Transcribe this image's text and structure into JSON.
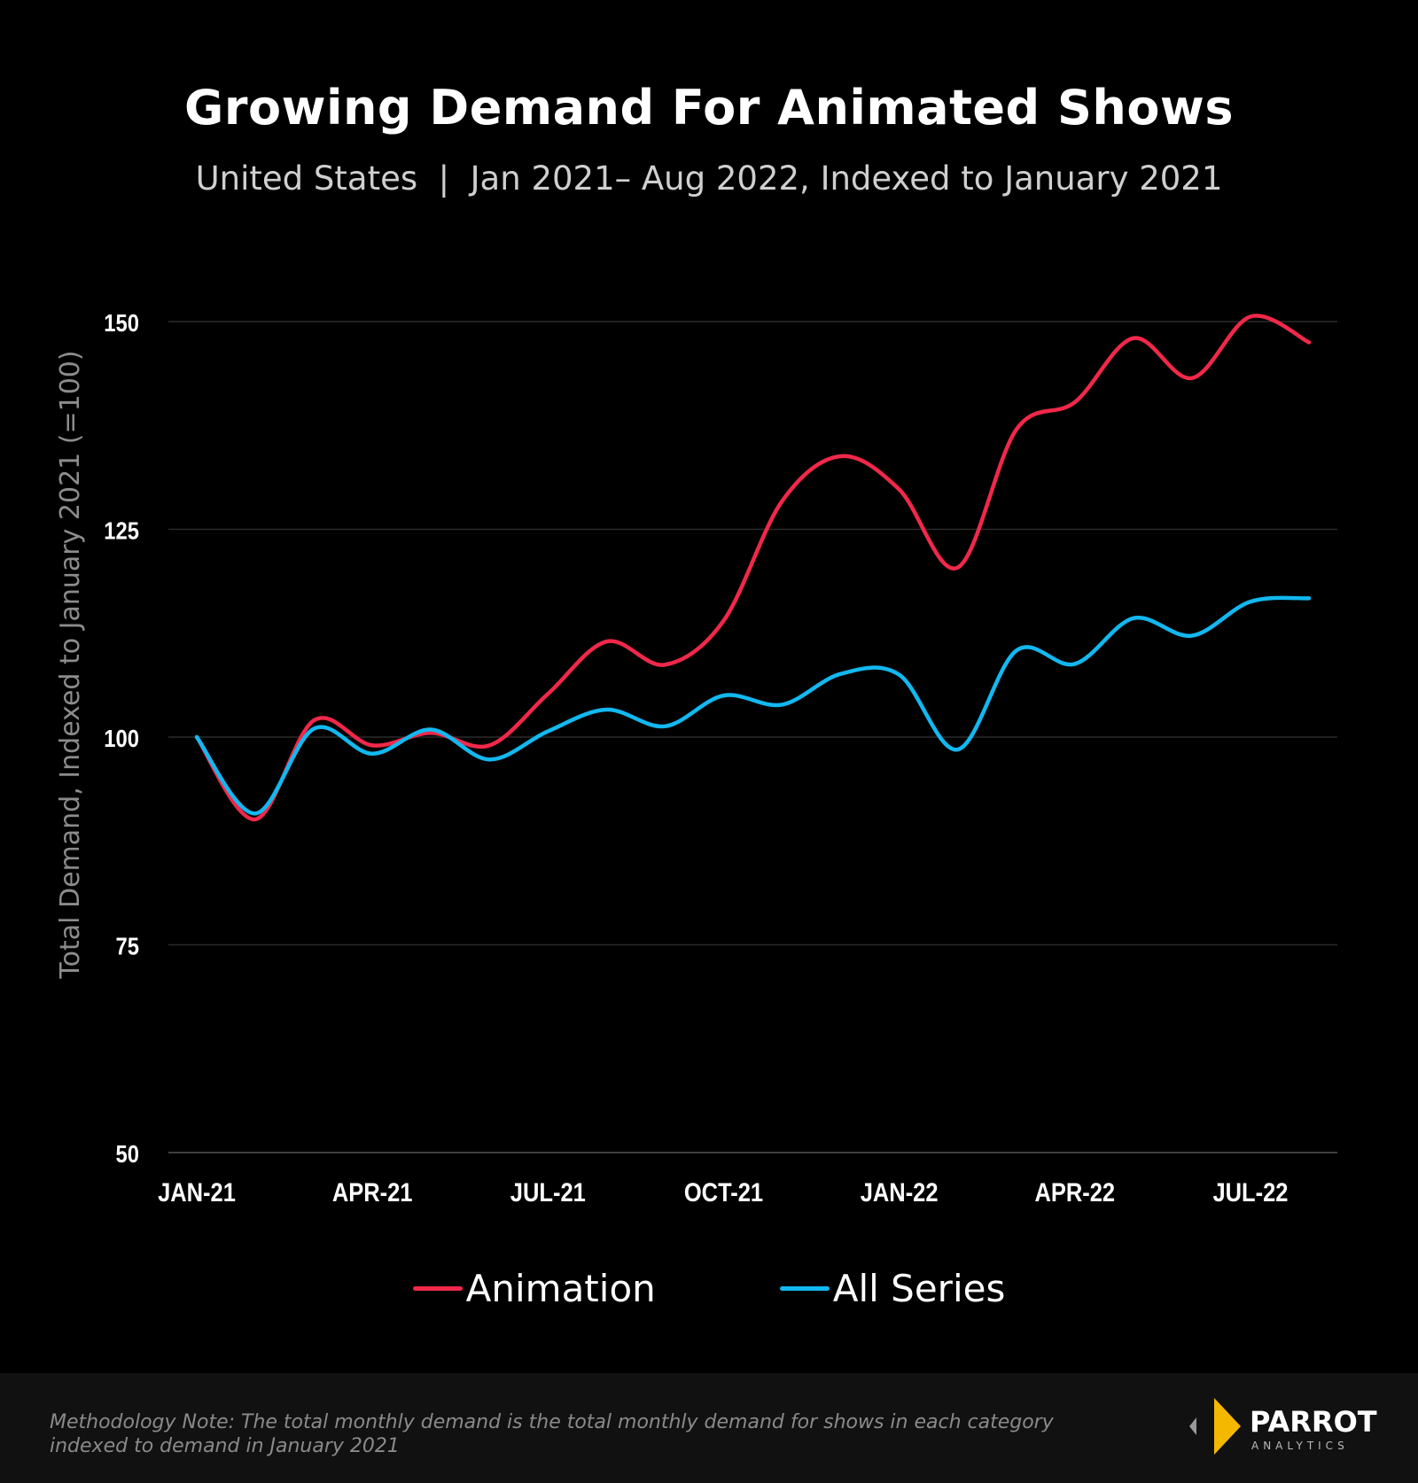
{
  "chart_data": {
    "type": "line",
    "title": "Growing Demand For Animated Shows",
    "subtitle": "United States  |  Jan 2021– Aug 2022, Indexed to January 2021",
    "ylabel": "Total Demand, Indexed to January 2021 (=100)",
    "xlabel": "",
    "ylim": [
      50,
      150
    ],
    "yticks": [
      "50",
      "75",
      "100",
      "125",
      "150"
    ],
    "ytick_values": [
      50,
      75,
      100,
      125,
      150
    ],
    "x": [
      "Jan-21",
      "Feb-21",
      "Mar-21",
      "Apr-21",
      "May-21",
      "Jun-21",
      "Jul-21",
      "Aug-21",
      "Sep-21",
      "Oct-21",
      "Nov-21",
      "Dec-21",
      "Jan-22",
      "Feb-22",
      "Mar-22",
      "Apr-22",
      "May-22",
      "Jun-22",
      "Jul-22",
      "Aug-22"
    ],
    "xticks": [
      {
        "index": 0,
        "label": "JAN-21"
      },
      {
        "index": 3,
        "label": "APR-21"
      },
      {
        "index": 6,
        "label": "JUL-21"
      },
      {
        "index": 9,
        "label": "OCT-21"
      },
      {
        "index": 12,
        "label": "JAN-22"
      },
      {
        "index": 15,
        "label": "APR-22"
      },
      {
        "index": 18,
        "label": "JUL-22"
      }
    ],
    "grid": true,
    "legend_placement": "bottom",
    "series": [
      {
        "name": "Animation",
        "color": "#f0284a",
        "values": [
          100,
          90.1,
          102,
          99,
          100.5,
          99,
          105.2,
          111.5,
          108.7,
          114,
          128.4,
          133.8,
          129.8,
          120.4,
          137,
          140.3,
          148,
          143.2,
          150.6,
          147.5
        ]
      },
      {
        "name": "All Series",
        "color": "#12b8f0",
        "values": [
          100,
          90.8,
          101,
          98,
          100.9,
          97.3,
          100.7,
          103.3,
          101.3,
          105,
          103.9,
          107.6,
          107.5,
          98.5,
          110.4,
          108.8,
          114.3,
          112.2,
          116.3,
          116.7
        ]
      }
    ]
  },
  "footer": {
    "note_line1": "Methodology Note: The total monthly demand is the total monthly demand for shows in each category",
    "note_line2": "indexed to demand in January 2021",
    "logo_text": "PARROT",
    "logo_subtext": "ANALYTICS",
    "logo_color": "#f5b800"
  }
}
